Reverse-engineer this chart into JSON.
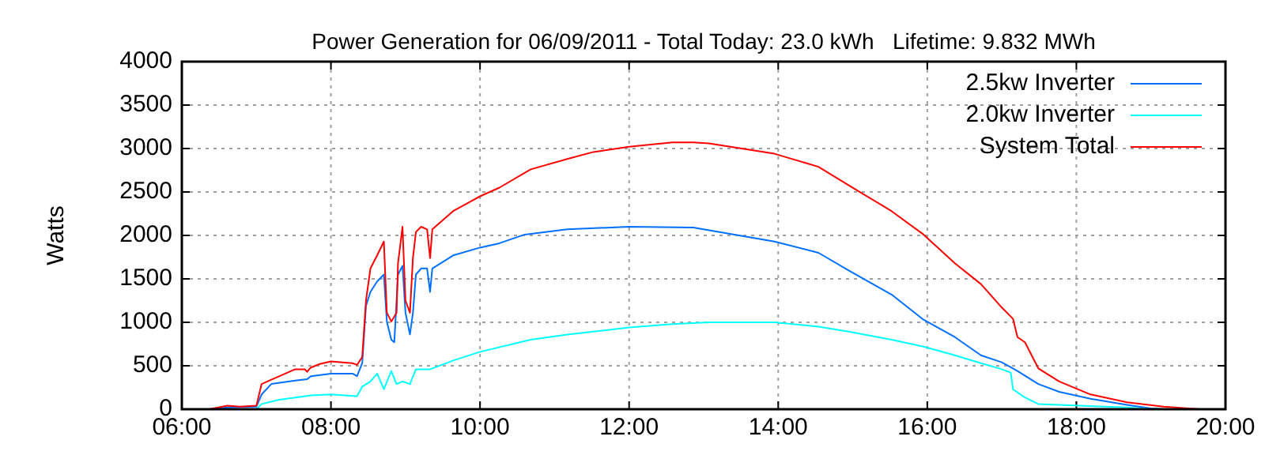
{
  "chart_data": {
    "type": "line",
    "title": "Power Generation for 06/09/2011 - Total Today: 23.0 kWh   Lifetime: 9.832 MWh",
    "ylabel": "Watts",
    "xlim": [
      6,
      20
    ],
    "xticks": [
      {
        "value": 6,
        "label": "06:00"
      },
      {
        "value": 8,
        "label": "08:00"
      },
      {
        "value": 10,
        "label": "10:00"
      },
      {
        "value": 12,
        "label": "12:00"
      },
      {
        "value": 14,
        "label": "14:00"
      },
      {
        "value": 16,
        "label": "16:00"
      },
      {
        "value": 18,
        "label": "18:00"
      },
      {
        "value": 20,
        "label": "20:00"
      }
    ],
    "ylim": [
      0,
      4000
    ],
    "yticks": [
      0,
      500,
      1000,
      1500,
      2000,
      2500,
      3000,
      3500,
      4000
    ],
    "grid": true,
    "legend": "top right",
    "series": [
      {
        "name": "2.5kw Inverter",
        "color": "#0070ff",
        "x": [
          6.37,
          6.61,
          7.0,
          7.07,
          7.2,
          7.52,
          7.68,
          7.73,
          8.0,
          8.29,
          8.35,
          8.42,
          8.47,
          8.53,
          8.62,
          8.71,
          8.75,
          8.81,
          8.85,
          8.9,
          8.96,
          9.0,
          9.06,
          9.1,
          9.14,
          9.21,
          9.29,
          9.33,
          9.36,
          9.64,
          10.0,
          10.26,
          10.6,
          11.17,
          12.0,
          12.86,
          13.95,
          14.54,
          14.96,
          15.52,
          15.95,
          16.37,
          16.72,
          17.0,
          17.21,
          17.49,
          17.77,
          18.19,
          18.68,
          19.0,
          19.17
        ],
        "values": [
          0,
          20,
          30,
          170,
          290,
          330,
          345,
          380,
          410,
          410,
          380,
          530,
          1190,
          1350,
          1470,
          1550,
          1010,
          800,
          770,
          1550,
          1650,
          1110,
          860,
          1110,
          1550,
          1620,
          1620,
          1350,
          1620,
          1770,
          1860,
          1910,
          2010,
          2070,
          2100,
          2090,
          1930,
          1800,
          1590,
          1320,
          1030,
          830,
          620,
          540,
          440,
          290,
          200,
          120,
          50,
          10,
          0
        ]
      },
      {
        "name": "2.0kw Inverter",
        "color": "#00ffff",
        "x": [
          7.0,
          7.07,
          7.31,
          7.73,
          8.0,
          8.35,
          8.42,
          8.53,
          8.62,
          8.71,
          8.81,
          8.88,
          8.96,
          9.06,
          9.14,
          9.33,
          9.64,
          10.0,
          10.68,
          11.17,
          12.0,
          12.58,
          13.07,
          13.95,
          14.54,
          14.96,
          15.52,
          15.95,
          16.37,
          16.72,
          17.0,
          17.12,
          17.15,
          17.3,
          17.49,
          17.77,
          18.68,
          19.0
        ],
        "values": [
          0,
          60,
          110,
          160,
          170,
          150,
          260,
          320,
          410,
          230,
          440,
          290,
          320,
          290,
          460,
          460,
          560,
          660,
          800,
          860,
          940,
          980,
          1000,
          1000,
          950,
          890,
          800,
          720,
          620,
          530,
          460,
          420,
          230,
          140,
          60,
          50,
          20,
          0
        ]
      },
      {
        "name": "System Total",
        "color": "#ff0000",
        "x": [
          6.37,
          6.61,
          6.78,
          7.0,
          7.07,
          7.2,
          7.31,
          7.52,
          7.65,
          7.68,
          7.73,
          7.85,
          8.0,
          8.29,
          8.35,
          8.42,
          8.47,
          8.53,
          8.62,
          8.71,
          8.75,
          8.81,
          8.88,
          8.9,
          8.96,
          9.0,
          9.06,
          9.1,
          9.14,
          9.21,
          9.29,
          9.33,
          9.36,
          9.64,
          10.0,
          10.26,
          10.68,
          11.17,
          11.52,
          12.0,
          12.58,
          12.86,
          13.07,
          13.95,
          14.54,
          14.96,
          15.52,
          15.95,
          16.37,
          16.72,
          17.0,
          17.15,
          17.21,
          17.31,
          17.49,
          17.77,
          18.19,
          18.68,
          19.17,
          19.66
        ],
        "values": [
          0,
          40,
          30,
          40,
          290,
          340,
          380,
          460,
          460,
          430,
          480,
          520,
          550,
          530,
          510,
          600,
          1250,
          1620,
          1770,
          1930,
          1110,
          1010,
          1110,
          1680,
          2100,
          1250,
          1110,
          1740,
          2040,
          2100,
          2070,
          1740,
          2070,
          2280,
          2450,
          2550,
          2760,
          2880,
          2960,
          3020,
          3070,
          3070,
          3060,
          2940,
          2790,
          2570,
          2280,
          2010,
          1680,
          1440,
          1170,
          1040,
          830,
          770,
          470,
          320,
          170,
          80,
          30,
          0
        ]
      }
    ]
  }
}
